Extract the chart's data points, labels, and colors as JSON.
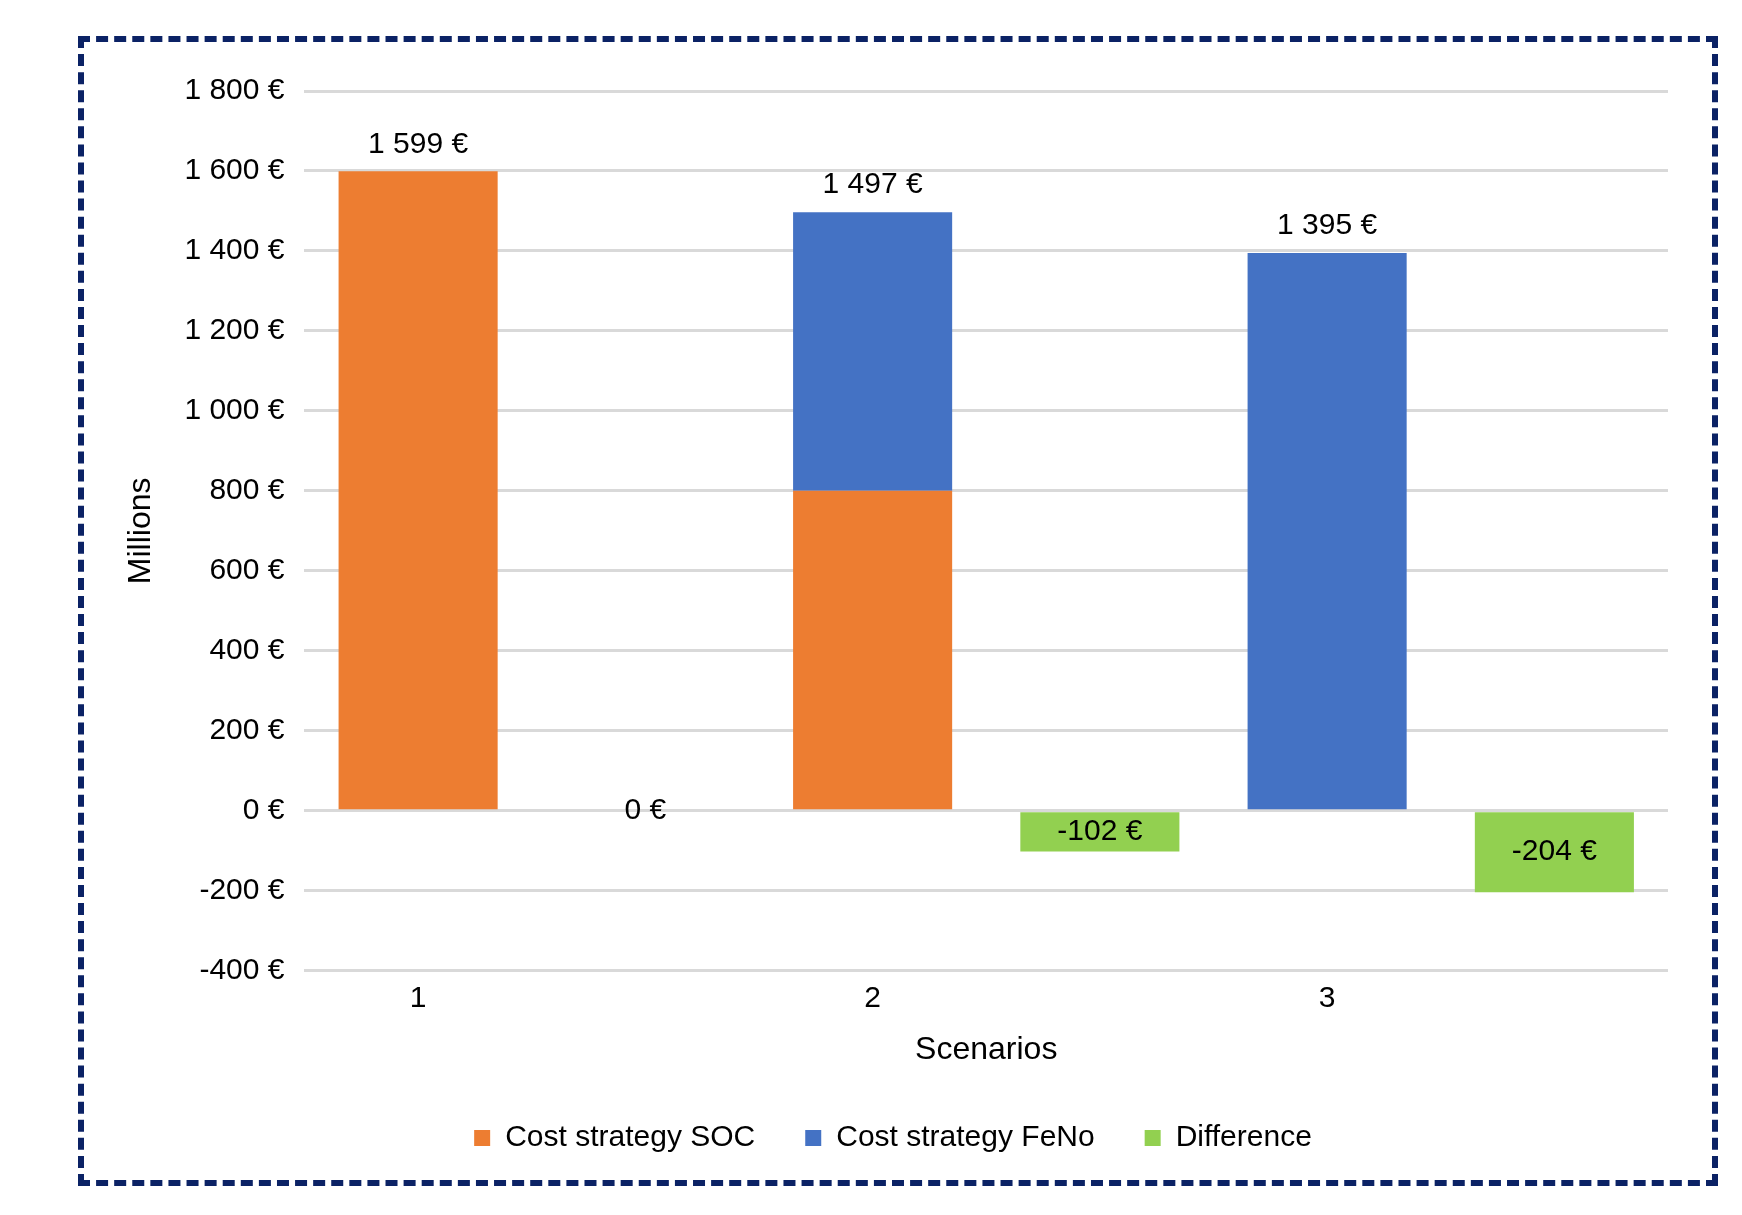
{
  "chart_data": {
    "type": "bar",
    "stacked": true,
    "ylabel": "Millions",
    "xlabel": "Scenarios",
    "categories": [
      "1",
      null,
      "2",
      null,
      "3",
      null
    ],
    "series": [
      {
        "name": "Cost strategy SOC",
        "color": "#ed7d31",
        "values": [
          1599,
          null,
          800,
          null,
          null,
          null
        ]
      },
      {
        "name": "Cost strategy FeNo",
        "color": "#4472c4",
        "values": [
          null,
          null,
          697,
          null,
          1395,
          null
        ]
      },
      {
        "name": "Difference",
        "color": "#92d050",
        "values": [
          null,
          0,
          null,
          -102,
          null,
          -204
        ],
        "value_labels": [
          null,
          "0 €",
          null,
          "-102 €",
          null,
          "-204 €"
        ]
      }
    ],
    "totals": [
      "1 599 €",
      null,
      "1 497 €",
      null,
      "1 395 €",
      null
    ],
    "ylim": [
      -400,
      1800
    ],
    "yticks": [
      {
        "value": -400,
        "label": "-400 €"
      },
      {
        "value": -200,
        "label": "-200 €"
      },
      {
        "value": 0,
        "label": "0 €"
      },
      {
        "value": 200,
        "label": "200 €"
      },
      {
        "value": 400,
        "label": "400 €"
      },
      {
        "value": 600,
        "label": "600 €"
      },
      {
        "value": 800,
        "label": "800 €"
      },
      {
        "value": 1000,
        "label": "1 000 €"
      },
      {
        "value": 1200,
        "label": "1 200 €"
      },
      {
        "value": 1400,
        "label": "1 400 €"
      },
      {
        "value": 1600,
        "label": "1 600 €"
      },
      {
        "value": 1800,
        "label": "1 800 €"
      }
    ],
    "grid": "y",
    "legend": "bottom"
  }
}
